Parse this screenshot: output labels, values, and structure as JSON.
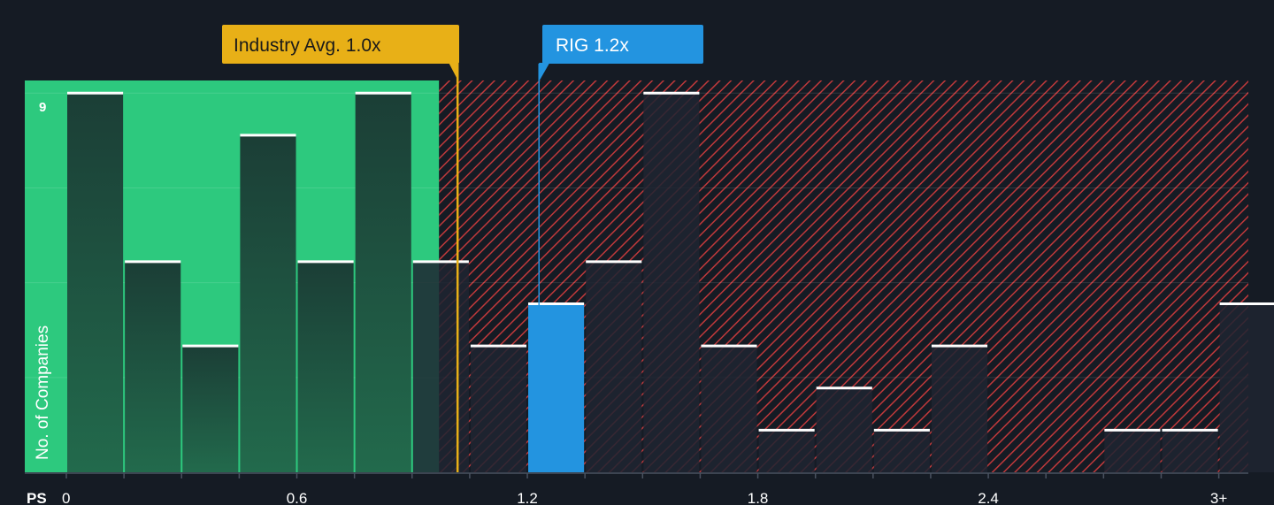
{
  "chart_data": {
    "type": "bar",
    "title": "",
    "xlabel": "PS",
    "ylabel": "No. of Companies",
    "ylim": [
      0,
      9.3
    ],
    "y_top_tick": "9",
    "x_ticks": [
      {
        "value": 0,
        "label": "0"
      },
      {
        "value": 0.6,
        "label": "0.6"
      },
      {
        "value": 1.2,
        "label": "1.2"
      },
      {
        "value": 1.8,
        "label": "1.8"
      },
      {
        "value": 2.4,
        "label": "2.4"
      },
      {
        "value": 3.0,
        "label": "3+"
      }
    ],
    "bin_width": 0.15,
    "bins": [
      {
        "start": 0.0,
        "count": 9
      },
      {
        "start": 0.15,
        "count": 5
      },
      {
        "start": 0.3,
        "count": 3
      },
      {
        "start": 0.45,
        "count": 8
      },
      {
        "start": 0.6,
        "count": 5
      },
      {
        "start": 0.75,
        "count": 9
      },
      {
        "start": 0.9,
        "count": 5
      },
      {
        "start": 1.05,
        "count": 3
      },
      {
        "start": 1.2,
        "count": 4,
        "highlight": true
      },
      {
        "start": 1.35,
        "count": 5
      },
      {
        "start": 1.5,
        "count": 9
      },
      {
        "start": 1.65,
        "count": 3
      },
      {
        "start": 1.8,
        "count": 1
      },
      {
        "start": 1.95,
        "count": 2
      },
      {
        "start": 2.1,
        "count": 1
      },
      {
        "start": 2.25,
        "count": 3
      },
      {
        "start": 2.4,
        "count": 0
      },
      {
        "start": 2.55,
        "count": 0
      },
      {
        "start": 2.7,
        "count": 1
      },
      {
        "start": 2.85,
        "count": 1
      },
      {
        "start": 3.0,
        "count": 4
      }
    ],
    "fair_zone_end": 0.97,
    "industry_avg": {
      "value": 1.0,
      "label": "Industry Avg. 1.0x"
    },
    "company": {
      "value": 1.235,
      "label": "RIG 1.2x"
    },
    "colors": {
      "background": "#151b24",
      "fair_zone": "#2dc97e",
      "bar_fair": "#1d4a3c",
      "bar_over": "#1e2531",
      "hatch": "#c0393b",
      "highlight": "#2394e0",
      "industry": "#e8b017",
      "bar_top": "#ffffff"
    }
  }
}
